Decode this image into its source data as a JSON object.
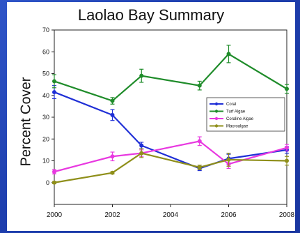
{
  "chart_data": {
    "type": "line",
    "title": "Laolao Bay Summary",
    "ylabel": "Percent Cover",
    "xlabel": "",
    "xlim": [
      2000,
      2008
    ],
    "ylim": [
      -10,
      70
    ],
    "xticks": [
      "2000",
      "2002",
      "2004",
      "2006",
      "2008"
    ],
    "yticks": [
      "0",
      "10",
      "20",
      "30",
      "40",
      "50",
      "60",
      "70"
    ],
    "legend_position": "right",
    "x": [
      2000,
      2002,
      2003,
      2005,
      2006,
      2008
    ],
    "series": [
      {
        "name": "Coral",
        "color": "#1f2fd6",
        "values": [
          41.5,
          31,
          17,
          6.5,
          11,
          15
        ],
        "err": [
          3,
          2.5,
          1.5,
          1,
          2,
          1.5
        ]
      },
      {
        "name": "Turf Algae",
        "color": "#1f8c2a",
        "values": [
          46.5,
          37.5,
          49,
          44.5,
          59,
          43
        ],
        "err": [
          3,
          1.5,
          3,
          2,
          4,
          2
        ]
      },
      {
        "name": "Coraline Algae",
        "color": "#e838e0",
        "values": [
          5,
          12,
          13.5,
          19,
          8.5,
          16
        ],
        "err": [
          1,
          2,
          1.5,
          2,
          2,
          1.5
        ]
      },
      {
        "name": "Macroalgae",
        "color": "#8f8f1a",
        "values": [
          0,
          4.5,
          13.5,
          7,
          10.5,
          10
        ],
        "err": [
          0.5,
          0.5,
          2,
          1,
          3,
          2
        ]
      }
    ]
  }
}
